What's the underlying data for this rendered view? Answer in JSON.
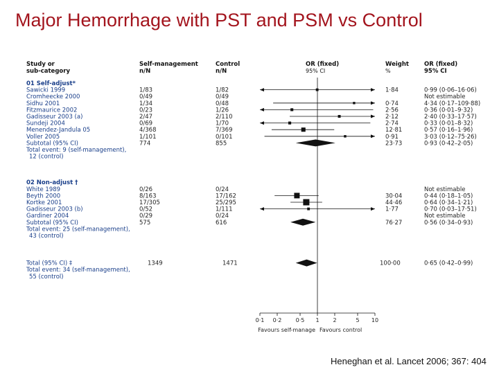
{
  "slide": {
    "title": "Major Hemorrhage with PST and PSM vs Control",
    "citation": "Heneghan et al. Lancet 2006; 367: 404"
  },
  "chart_data": {
    "type": "forest",
    "scale": "log",
    "xlim": [
      0.1,
      10
    ],
    "ticks": [
      "0·1",
      "0·2",
      "0·5",
      "1",
      "2",
      "5",
      "10"
    ],
    "tick_values": [
      0.1,
      0.2,
      0.5,
      1,
      2,
      5,
      10
    ],
    "xlabel_left": "Favours self-manage",
    "xlabel_right": "Favours control",
    "headers": {
      "study": [
        "Study or",
        "sub-category"
      ],
      "self": [
        "Self-management",
        "n/N"
      ],
      "control": [
        "Control",
        "n/N"
      ],
      "or": [
        "OR (fixed)",
        "95% CI"
      ],
      "weight": [
        "Weight",
        "%"
      ],
      "orci": [
        "OR (fixed)",
        "95% CI"
      ]
    },
    "groups": [
      {
        "label": "01 Self-adjust*",
        "studies": [
          {
            "name": "Sawicki 1999",
            "self": "1/83",
            "control": "1/82",
            "weight": "1·84",
            "orci": "0·99 (0·06–16·06)",
            "or": 0.99,
            "lo": 0.06,
            "hi": 16.06,
            "arrow_left": true,
            "arrow_right": true
          },
          {
            "name": "Cromheecke 2000",
            "self": "0/49",
            "control": "0/49",
            "weight": "",
            "orci": "Not estimable"
          },
          {
            "name": "Sidhu 2001",
            "self": "1/34",
            "control": "0/48",
            "weight": "0·74",
            "orci": "4·34 (0·17–109·88)",
            "or": 4.34,
            "lo": 0.17,
            "hi": 109.88,
            "arrow_right": true
          },
          {
            "name": "Fitzmaurice 2002",
            "self": "0/23",
            "control": "1/26",
            "weight": "2·56",
            "orci": "0·36 (0·01–9·32)",
            "or": 0.36,
            "lo": 0.01,
            "hi": 9.32,
            "arrow_left": true
          },
          {
            "name": "Gadisseur 2003 (a)",
            "self": "2/47",
            "control": "2/110",
            "weight": "2·12",
            "orci": "2·40 (0·33–17·57)",
            "or": 2.4,
            "lo": 0.33,
            "hi": 17.57,
            "arrow_right": true
          },
          {
            "name": "Sundeji 2004",
            "self": "0/69",
            "control": "1/70",
            "weight": "2·74",
            "orci": "0·33 (0·01–8·32)",
            "or": 0.33,
            "lo": 0.01,
            "hi": 8.32,
            "arrow_left": true
          },
          {
            "name": "Menendez-Jandula 05",
            "self": "4/368",
            "control": "7/369",
            "weight": "12·81",
            "orci": "0·57 (0·16–1·96)",
            "or": 0.57,
            "lo": 0.16,
            "hi": 1.96
          },
          {
            "name": "Voller 2005",
            "self": "1/101",
            "control": "0/101",
            "weight": "0·91",
            "orci": "3·03 (0·12–75·26)",
            "or": 3.03,
            "lo": 0.12,
            "hi": 75.26,
            "arrow_right": true
          }
        ],
        "subtotal": {
          "label": "Subtotal (95% CI)",
          "self": "774",
          "control": "855",
          "weight": "23·73",
          "orci": "0·93 (0·42–2·05)",
          "or": 0.93,
          "lo": 0.42,
          "hi": 2.05
        },
        "events": [
          "Total event: 9 (self-management),",
          "12 (control)"
        ]
      },
      {
        "label": "02 Non-adjust †",
        "studies": [
          {
            "name": "White 1989",
            "self": "0/26",
            "control": "0/24",
            "weight": "",
            "orci": "Not estimable"
          },
          {
            "name": "Beyth 2000",
            "self": "8/163",
            "control": "17/162",
            "weight": "30·04",
            "orci": "0·44 (0·18–1·05)",
            "or": 0.44,
            "lo": 0.18,
            "hi": 1.05
          },
          {
            "name": "Kortke 2001",
            "self": "17/305",
            "control": "25/295",
            "weight": "44·46",
            "orci": "0·64 (0·34–1·21)",
            "or": 0.64,
            "lo": 0.34,
            "hi": 1.21
          },
          {
            "name": "Gadisseur 2003 (b)",
            "self": "0/52",
            "control": "1/111",
            "weight": "1·77",
            "orci": "0·70 (0·03–17·51)",
            "or": 0.7,
            "lo": 0.03,
            "hi": 17.51,
            "arrow_left": true,
            "arrow_right": true
          },
          {
            "name": "Gardiner 2004",
            "self": "0/29",
            "control": "0/24",
            "weight": "",
            "orci": "Not estimable"
          }
        ],
        "subtotal": {
          "label": "Subtotal (95% CI)",
          "self": "575",
          "control": "616",
          "weight": "76·27",
          "orci": "0·56 (0·34–0·93)",
          "or": 0.56,
          "lo": 0.34,
          "hi": 0.93
        },
        "events": [
          "Total event: 25 (self-management),",
          "43 (control)"
        ]
      }
    ],
    "total": {
      "label": "Total (95% CI) ‡",
      "self": "1349",
      "control": "1471",
      "weight": "100·00",
      "orci": "0·65 (0·42–0·99)",
      "or": 0.65,
      "lo": 0.42,
      "hi": 0.99,
      "events": [
        "Total event: 34 (self-management),",
        "55 (control)"
      ]
    }
  }
}
